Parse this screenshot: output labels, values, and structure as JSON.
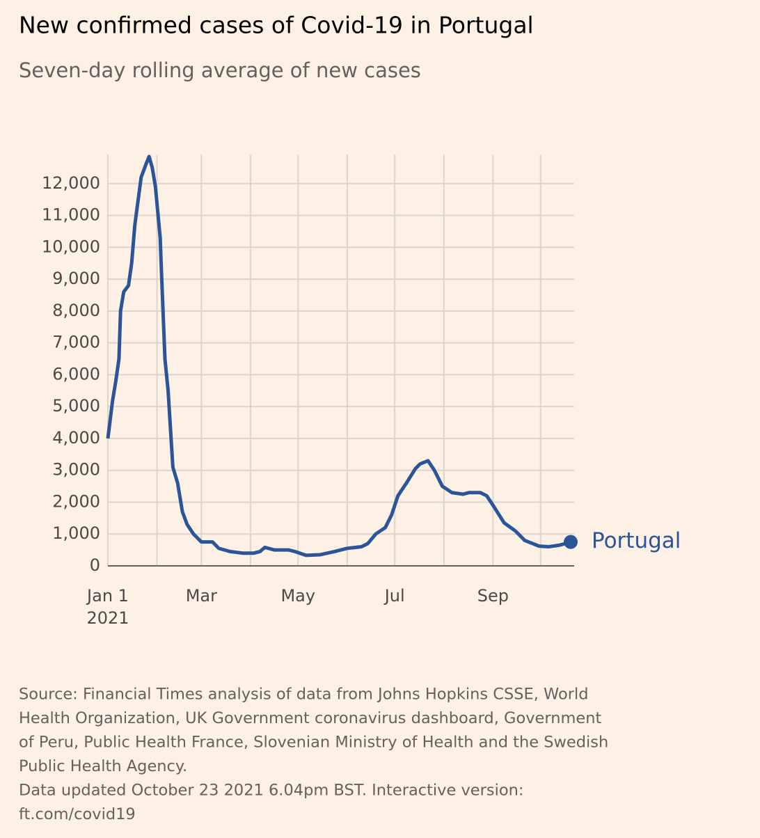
{
  "chart_data": {
    "type": "line",
    "title": "New confirmed cases of Covid-19 in Portugal",
    "subtitle": "Seven-day rolling average of new cases",
    "x": [
      0,
      3,
      5,
      7,
      8,
      10,
      13,
      15,
      17,
      21,
      24,
      26,
      28,
      30,
      33,
      34,
      36,
      38,
      41,
      44,
      47,
      50,
      54,
      59,
      66,
      70,
      77,
      85,
      92,
      96,
      99,
      105,
      114,
      118,
      125,
      134,
      143,
      151,
      160,
      164,
      169,
      175,
      179,
      183,
      189,
      194,
      197,
      202,
      206,
      211,
      217,
      224,
      228,
      235,
      239,
      243,
      250,
      257,
      263,
      272,
      278,
      285,
      292
    ],
    "series": [
      {
        "name": "Portugal",
        "color": "#2b5597",
        "values": [
          4000,
          5200,
          5800,
          6500,
          8000,
          8600,
          8800,
          9500,
          10700,
          12200,
          12600,
          12850,
          12500,
          11900,
          10300,
          9000,
          6500,
          5500,
          3100,
          2600,
          1700,
          1300,
          1000,
          750,
          750,
          550,
          450,
          400,
          400,
          450,
          580,
          500,
          500,
          450,
          330,
          350,
          450,
          550,
          600,
          700,
          1000,
          1200,
          1600,
          2200,
          2650,
          3050,
          3200,
          3300,
          3000,
          2500,
          2300,
          2250,
          2300,
          2300,
          2200,
          1900,
          1350,
          1100,
          800,
          620,
          600,
          650,
          750
        ]
      }
    ],
    "xlim": [
      0,
      292
    ],
    "xticks": [
      {
        "value": 0,
        "label": "Jan 1"
      },
      {
        "value": 59,
        "label": "Mar"
      },
      {
        "value": 120,
        "label": "May"
      },
      {
        "value": 181,
        "label": "Jul"
      },
      {
        "value": 243,
        "label": "Sep"
      }
    ],
    "x_year_label": "2021",
    "x_grid": [
      0,
      31,
      59,
      90,
      120,
      151,
      181,
      212,
      243,
      273
    ],
    "ylim": [
      0,
      13000
    ],
    "yticks": [
      0,
      {
        "value": 1000,
        "label": "1,000"
      },
      {
        "value": 2000,
        "label": "2,000"
      },
      {
        "value": 3000,
        "label": "3,000"
      },
      {
        "value": 4000,
        "label": "4,000"
      },
      {
        "value": 5000,
        "label": "5,000"
      },
      {
        "value": 6000,
        "label": "6,000"
      },
      {
        "value": 7000,
        "label": "7,000"
      },
      {
        "value": 8000,
        "label": "8,000"
      },
      {
        "value": 9000,
        "label": "9,000"
      },
      {
        "value": 10000,
        "label": "10,000"
      },
      {
        "value": 11000,
        "label": "11,000"
      },
      {
        "value": 12000,
        "label": "12,000"
      }
    ],
    "grid": true,
    "footer_lines": [
      "Source: Financial Times analysis of data from Johns Hopkins CSSE, World",
      "Health Organization, UK Government coronavirus dashboard, Government",
      "of Peru, Public Health France, Slovenian Ministry of Health and the Swedish",
      "Public Health Agency.",
      "Data updated October 23 2021 6.04pm BST. Interactive version:",
      "ft.com/covid19"
    ]
  }
}
